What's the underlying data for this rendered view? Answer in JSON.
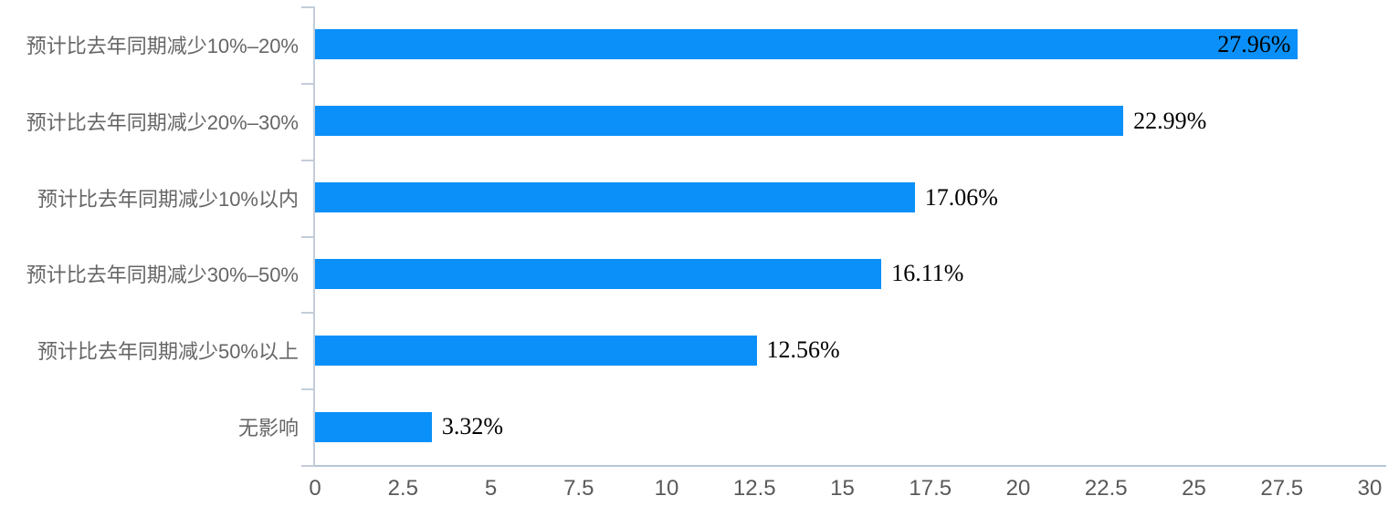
{
  "chart_data": {
    "type": "bar",
    "orientation": "horizontal",
    "title": "",
    "xlabel": "",
    "ylabel": "",
    "categories": [
      "预计比去年同期减少10%–20%",
      "预计比去年同期减少20%–30%",
      "预计比去年同期减少10%以内",
      "预计比去年同期减少30%–50%",
      "预计比去年同期减少50%以上",
      "无影响"
    ],
    "values": [
      27.96,
      22.99,
      17.06,
      16.11,
      12.56,
      3.32
    ],
    "value_labels": [
      "27.96%",
      "22.99%",
      "17.06%",
      "16.11%",
      "12.56%",
      "3.32%"
    ],
    "value_label_inside": [
      true,
      false,
      false,
      false,
      false,
      false
    ],
    "xlim": [
      0,
      30
    ],
    "x_ticks": [
      "0",
      "2.5",
      "5",
      "7.5",
      "10",
      "12.5",
      "15",
      "17.5",
      "20",
      "22.5",
      "25",
      "27.5",
      "30"
    ],
    "grid": false,
    "legend": false,
    "colors": {
      "bar": "#0a90f8",
      "axis": "#bcc9d8",
      "category_label": "#666666",
      "tick_label": "#595959",
      "value_label": "#000000"
    }
  }
}
